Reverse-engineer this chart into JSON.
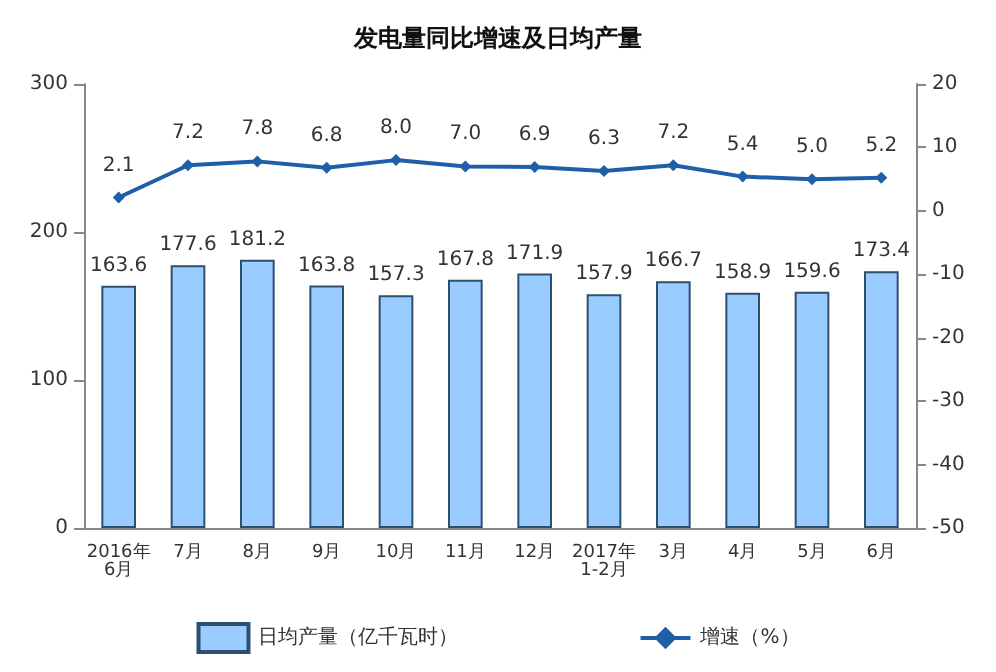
{
  "chart_data": {
    "type": "bar",
    "title": "发电量同比增速及日均产量",
    "categories": [
      "2016年\n6月",
      "7月",
      "8月",
      "9月",
      "10月",
      "11月",
      "12月",
      "2017年\n1-2月",
      "3月",
      "4月",
      "5月",
      "6月"
    ],
    "series": [
      {
        "name": "日均产量（亿千瓦时）",
        "color": "#99ccff",
        "values": [
          163.6,
          177.6,
          181.2,
          163.8,
          157.3,
          167.8,
          171.9,
          157.9,
          166.7,
          158.9,
          159.6,
          173.4
        ]
      },
      {
        "name": "增速（%）",
        "type": "line",
        "axis": "y2",
        "color": "#1f5fa8",
        "marker": "diamond",
        "values": [
          2.1,
          7.2,
          7.8,
          6.8,
          8.0,
          7.0,
          6.9,
          6.3,
          7.2,
          5.4,
          5.0,
          5.2
        ],
        "value_labels": [
          "2.1",
          "7.2",
          "7.8",
          "6.8",
          "8.0",
          "7.0",
          "6.9",
          "6.3",
          "7.2",
          "5.4",
          "5.0",
          "5.2"
        ]
      }
    ],
    "ylim": [
      0,
      300
    ],
    "yticks": [
      0,
      100,
      200,
      300
    ],
    "y2lim": [
      -50,
      20
    ],
    "y2ticks": [
      -50,
      -40,
      -30,
      -20,
      -10,
      0,
      10,
      20
    ],
    "data_labels": true,
    "legend": "bottom",
    "grid": false
  }
}
